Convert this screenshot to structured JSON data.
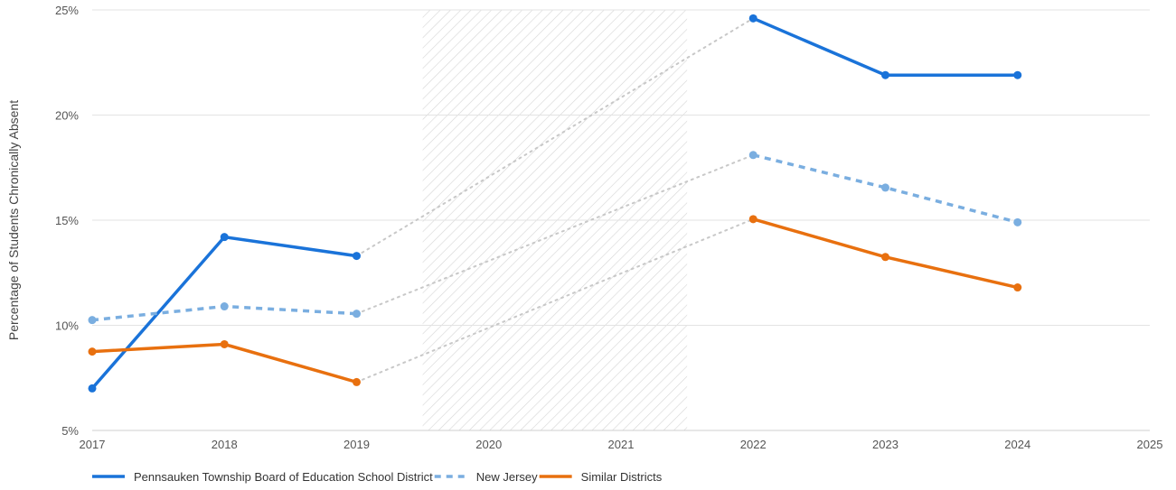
{
  "chart_data": {
    "type": "line",
    "title": "",
    "xlabel": "",
    "ylabel": "Percentage of Students Chronically Absent",
    "x_ticks": [
      "2017",
      "2018",
      "2019",
      "2020",
      "2021",
      "2022",
      "2023",
      "2024",
      "2025"
    ],
    "y_ticks": [
      "5%",
      "10%",
      "15%",
      "20%",
      "25%"
    ],
    "xlim": [
      2017,
      2025
    ],
    "ylim": [
      5,
      25
    ],
    "grid": "horizontal",
    "legend_position": "bottom-left",
    "gap_region": {
      "x_start": 2019.5,
      "x_end": 2021.5,
      "pattern": "diagonal-hatch"
    },
    "gap_connector_color": "#c8c8c8",
    "series": [
      {
        "name": "Pennsauken Township Board of Education School District",
        "color": "#1a73d9",
        "dash": "solid",
        "x": [
          2017,
          2018,
          2019,
          2022,
          2023,
          2024
        ],
        "values": [
          7.0,
          14.2,
          13.3,
          24.6,
          21.9,
          21.9
        ]
      },
      {
        "name": "New Jersey",
        "color": "#7aaee0",
        "dash": "dashed",
        "x": [
          2017,
          2018,
          2019,
          2022,
          2023,
          2024
        ],
        "values": [
          10.25,
          10.9,
          10.55,
          18.1,
          16.55,
          14.9
        ]
      },
      {
        "name": "Similar Districts",
        "color": "#e8700f",
        "dash": "solid",
        "x": [
          2017,
          2018,
          2019,
          2022,
          2023,
          2024
        ],
        "values": [
          8.75,
          9.1,
          7.3,
          15.05,
          13.25,
          11.8
        ]
      }
    ]
  }
}
